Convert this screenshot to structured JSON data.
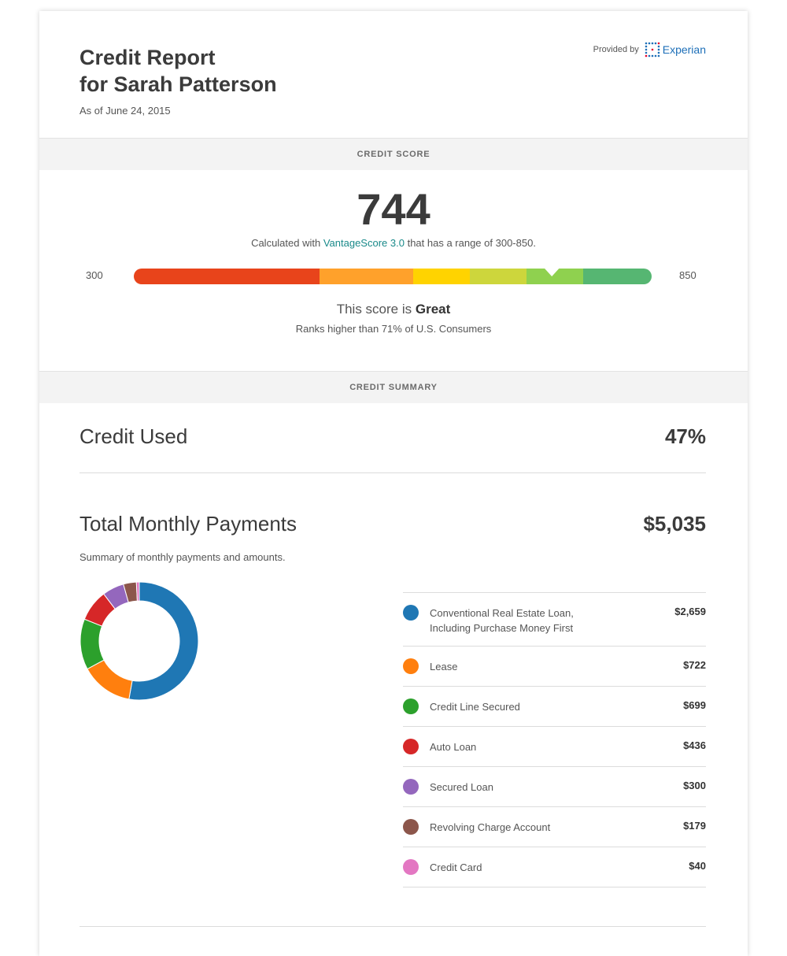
{
  "header": {
    "title_line1": "Credit Report",
    "title_line2": "for Sarah Patterson",
    "as_of": "As of June 24, 2015",
    "provided_by": "Provided by",
    "provider_name": "Experian"
  },
  "score_section": {
    "band_label": "CREDIT SCORE",
    "score": "744",
    "note_prefix": "Calculated with ",
    "note_link": "VantageScore 3.0",
    "note_suffix": " that has a range of 300-850.",
    "range_min": "300",
    "range_max": "850",
    "score_numeric": 744,
    "range_numeric": [
      300,
      850
    ],
    "gauge_colors": [
      "#e8441b",
      "#ffa12b",
      "#ffd300",
      "#cdd63c",
      "#8fd14f",
      "#56b672"
    ],
    "rating_prefix": "This score is ",
    "rating": "Great",
    "rank_text": "Ranks higher than 71% of U.S. Consumers"
  },
  "summary_section": {
    "band_label": "CREDIT SUMMARY",
    "credit_used_label": "Credit Used",
    "credit_used_value": "47%",
    "monthly_payments_label": "Total Monthly Payments",
    "monthly_payments_value": "$5,035",
    "monthly_payments_sub": "Summary of monthly payments and amounts."
  },
  "chart_data": {
    "type": "pie",
    "categories": [
      "Conventional Real Estate Loan, Including Purchase Money First",
      "Lease",
      "Credit Line Secured",
      "Auto Loan",
      "Secured Loan",
      "Revolving Charge Account",
      "Credit Card"
    ],
    "values": [
      2659,
      722,
      699,
      436,
      300,
      179,
      40
    ],
    "colors": [
      "#1f77b4",
      "#ff7f0e",
      "#2ca02c",
      "#d62728",
      "#9467bd",
      "#8c564b",
      "#e377c2"
    ],
    "title": "",
    "legend_placement": "right"
  },
  "payments": [
    {
      "label": "Conventional Real Estate Loan,",
      "label_line2": "Including Purchase Money First",
      "amount": "$2,659",
      "color": "#1f77b4"
    },
    {
      "label": "Lease",
      "label_line2": "",
      "amount": "$722",
      "color": "#ff7f0e"
    },
    {
      "label": "Credit Line Secured",
      "label_line2": "",
      "amount": "$699",
      "color": "#2ca02c"
    },
    {
      "label": "Auto Loan",
      "label_line2": "",
      "amount": "$436",
      "color": "#d62728"
    },
    {
      "label": "Secured Loan",
      "label_line2": "",
      "amount": "$300",
      "color": "#9467bd"
    },
    {
      "label": "Revolving Charge Account",
      "label_line2": "",
      "amount": "$179",
      "color": "#8c564b"
    },
    {
      "label": "Credit Card",
      "label_line2": "",
      "amount": "$40",
      "color": "#e377c2"
    }
  ]
}
